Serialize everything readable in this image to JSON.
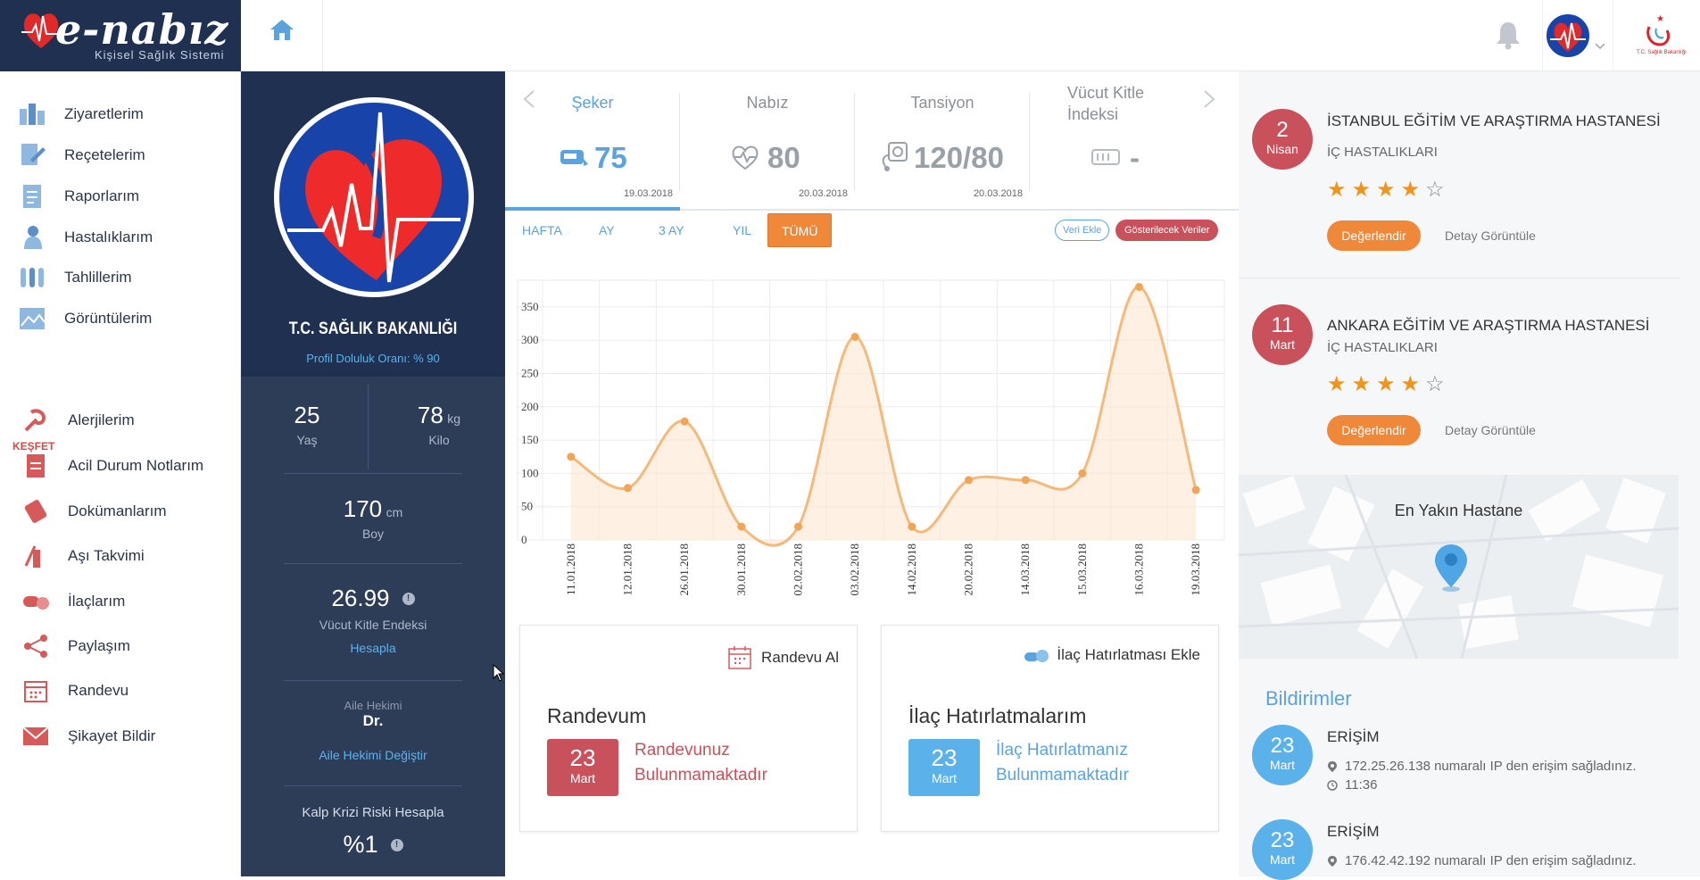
{
  "header": {
    "logo_text": "e-nabız",
    "logo_subtitle": "Kişisel Sağlık Sistemi",
    "ministry_caption": "T.C. Sağlık Bakanlığı"
  },
  "sidebar": {
    "items": [
      {
        "label": "Ziyaretlerim",
        "icon": "visits-icon"
      },
      {
        "label": "Reçetelerim",
        "icon": "prescriptions-icon"
      },
      {
        "label": "Raporlarım",
        "icon": "reports-icon"
      },
      {
        "label": "Hastalıklarım",
        "icon": "diseases-icon"
      },
      {
        "label": "Tahlillerim",
        "icon": "tests-icon"
      },
      {
        "label": "Görüntülerim",
        "icon": "images-icon"
      }
    ],
    "explore_heading": "KEŞFET",
    "explore_items": [
      {
        "label": "Alerjilerim",
        "icon": "allergy-icon"
      },
      {
        "label": "Acil Durum Notlarım",
        "icon": "emergency-notes-icon"
      },
      {
        "label": "Dokümanlarım",
        "icon": "documents-icon"
      },
      {
        "label": "Aşı Takvimi",
        "icon": "vaccine-icon"
      },
      {
        "label": "İlaçlarım",
        "icon": "pills-icon"
      },
      {
        "label": "Paylaşım",
        "icon": "share-icon"
      },
      {
        "label": "Randevu",
        "icon": "calendar-icon"
      },
      {
        "label": "Şikayet Bildir",
        "icon": "envelope-icon"
      }
    ]
  },
  "profile": {
    "name": "T.C. SAĞLIK BAKANLIĞI",
    "completion": "Profil Doluluk Oranı: % 90",
    "age_value": "25",
    "age_label": "Yaş",
    "weight_value": "78",
    "weight_unit": "kg",
    "weight_label": "Kilo",
    "height_value": "170",
    "height_unit": "cm",
    "height_label": "Boy",
    "bmi_value": "26.99",
    "bmi_label": "Vücut Kitle Endeksi",
    "bmi_link": "Hesapla",
    "doctor_label": "Aile Hekimi",
    "doctor_name": "Dr.",
    "doctor_link": "Aile Hekimi Değiştir",
    "risk_label": "Kalp Krizi Riski Hesapla",
    "risk_value": "%1"
  },
  "metrics": [
    {
      "title": "Şeker",
      "value": "75",
      "date": "19.03.2018",
      "active": true
    },
    {
      "title": "Nabız",
      "value": "80",
      "date": "20.03.2018",
      "active": false
    },
    {
      "title": "Tansiyon",
      "value": "120/80",
      "date": "20.03.2018",
      "active": false
    },
    {
      "title": "Vücut Kitle İndeksi",
      "value": "-",
      "date": "",
      "active": false
    }
  ],
  "filters": {
    "ranges": [
      "HAFTA",
      "AY",
      "3 AY",
      "YIL",
      "TÜMÜ"
    ],
    "active": "TÜMÜ",
    "add_data": "Veri Ekle",
    "show_data": "Gösterilecek Veriler"
  },
  "chart_data": {
    "type": "area",
    "x": [
      "11.01.2018",
      "12.01.2018",
      "26.01.2018",
      "30.01.2018",
      "02.02.2018",
      "03.02.2018",
      "14.02.2018",
      "20.02.2018",
      "14.03.2018",
      "15.03.2018",
      "16.03.2018",
      "19.03.2018"
    ],
    "values": [
      125,
      78,
      178,
      20,
      20,
      305,
      20,
      90,
      90,
      100,
      380,
      75
    ],
    "ylim": [
      0,
      390
    ],
    "yticks": [
      0,
      50,
      100,
      150,
      200,
      250,
      300,
      350
    ],
    "color": "#f5b97a",
    "grid": true
  },
  "cards": {
    "appointment": {
      "action": "Randevu Al",
      "title": "Randevum",
      "day": "23",
      "month": "Mart",
      "message_line1": "Randevunuz",
      "message_line2": "Bulunmamaktadır"
    },
    "reminder": {
      "action": "İlaç Hatırlatması Ekle",
      "title": "İlaç Hatırlatmalarım",
      "day": "23",
      "month": "Mart",
      "message_line1": "İlaç Hatırlatmanız",
      "message_line2": "Bulunmamaktadır"
    }
  },
  "visits": [
    {
      "day": "2",
      "month": "Nisan",
      "hospital": "İSTANBUL EĞİTİM VE ARAŞTIRMA HASTANESİ",
      "dept": "İÇ HASTALIKLARI",
      "rating": 4,
      "rate_label": "Değerlendir",
      "detail_label": "Detay Görüntüle"
    },
    {
      "day": "11",
      "month": "Mart",
      "hospital": "ANKARA EĞİTİM VE ARAŞTIRMA HASTANESİ",
      "dept": "İÇ HASTALIKLARI",
      "rating": 4,
      "rate_label": "Değerlendir",
      "detail_label": "Detay Görüntüle"
    }
  ],
  "map": {
    "title": "En Yakın Hastane"
  },
  "notifications": {
    "title": "Bildirimler",
    "items": [
      {
        "day": "23",
        "month": "Mart",
        "title": "ERİŞİM",
        "text": "172.25.26.138 numaralı IP den erişim sağladınız.",
        "time": "11:36"
      },
      {
        "day": "23",
        "month": "Mart",
        "title": "ERİŞİM",
        "text": "176.42.42.192 numaralı IP den erişim sağladınız.",
        "time": ""
      }
    ]
  },
  "colors": {
    "navy": "#1f3050",
    "panel": "#2d3d58",
    "accent_blue": "#5ba3dc",
    "orange": "#f0883a",
    "red": "#c9515b"
  }
}
